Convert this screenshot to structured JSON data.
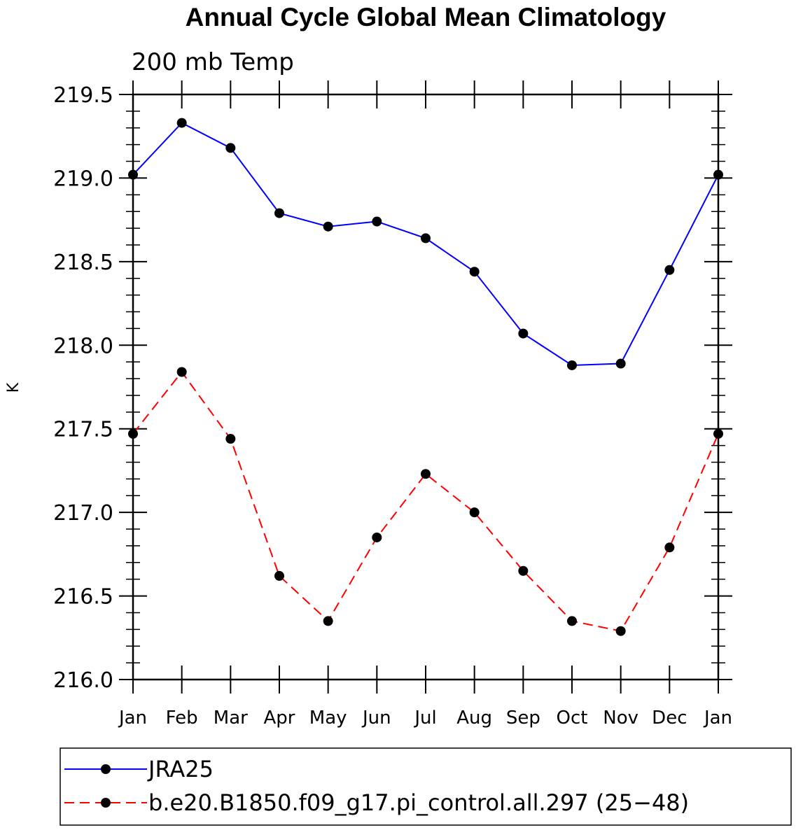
{
  "chart_data": {
    "type": "line",
    "title": "Annual Cycle Global Mean Climatology",
    "subtitle": "200 mb Temp",
    "xlabel": "",
    "ylabel": "K",
    "ylim": [
      216.0,
      219.5
    ],
    "yticks": [
      "216.0",
      "216.5",
      "217.0",
      "217.5",
      "218.0",
      "218.5",
      "219.0",
      "219.5"
    ],
    "categories": [
      "Jan",
      "Feb",
      "Mar",
      "Apr",
      "May",
      "Jun",
      "Jul",
      "Aug",
      "Sep",
      "Oct",
      "Nov",
      "Dec",
      "Jan"
    ],
    "series": [
      {
        "name": "JRA25",
        "color": "#0000ff",
        "dash": "solid",
        "values": [
          219.02,
          219.33,
          219.18,
          218.79,
          218.71,
          218.74,
          218.64,
          218.44,
          218.07,
          217.88,
          217.89,
          218.45,
          219.02
        ]
      },
      {
        "name": "b.e20.B1850.f09_g17.pi_control.all.297 (25−48)",
        "color": "#ff0000",
        "dash": "dashed",
        "values": [
          217.47,
          217.84,
          217.44,
          216.62,
          216.35,
          216.85,
          217.23,
          217.0,
          216.65,
          216.35,
          216.29,
          216.79,
          217.47
        ]
      }
    ]
  }
}
